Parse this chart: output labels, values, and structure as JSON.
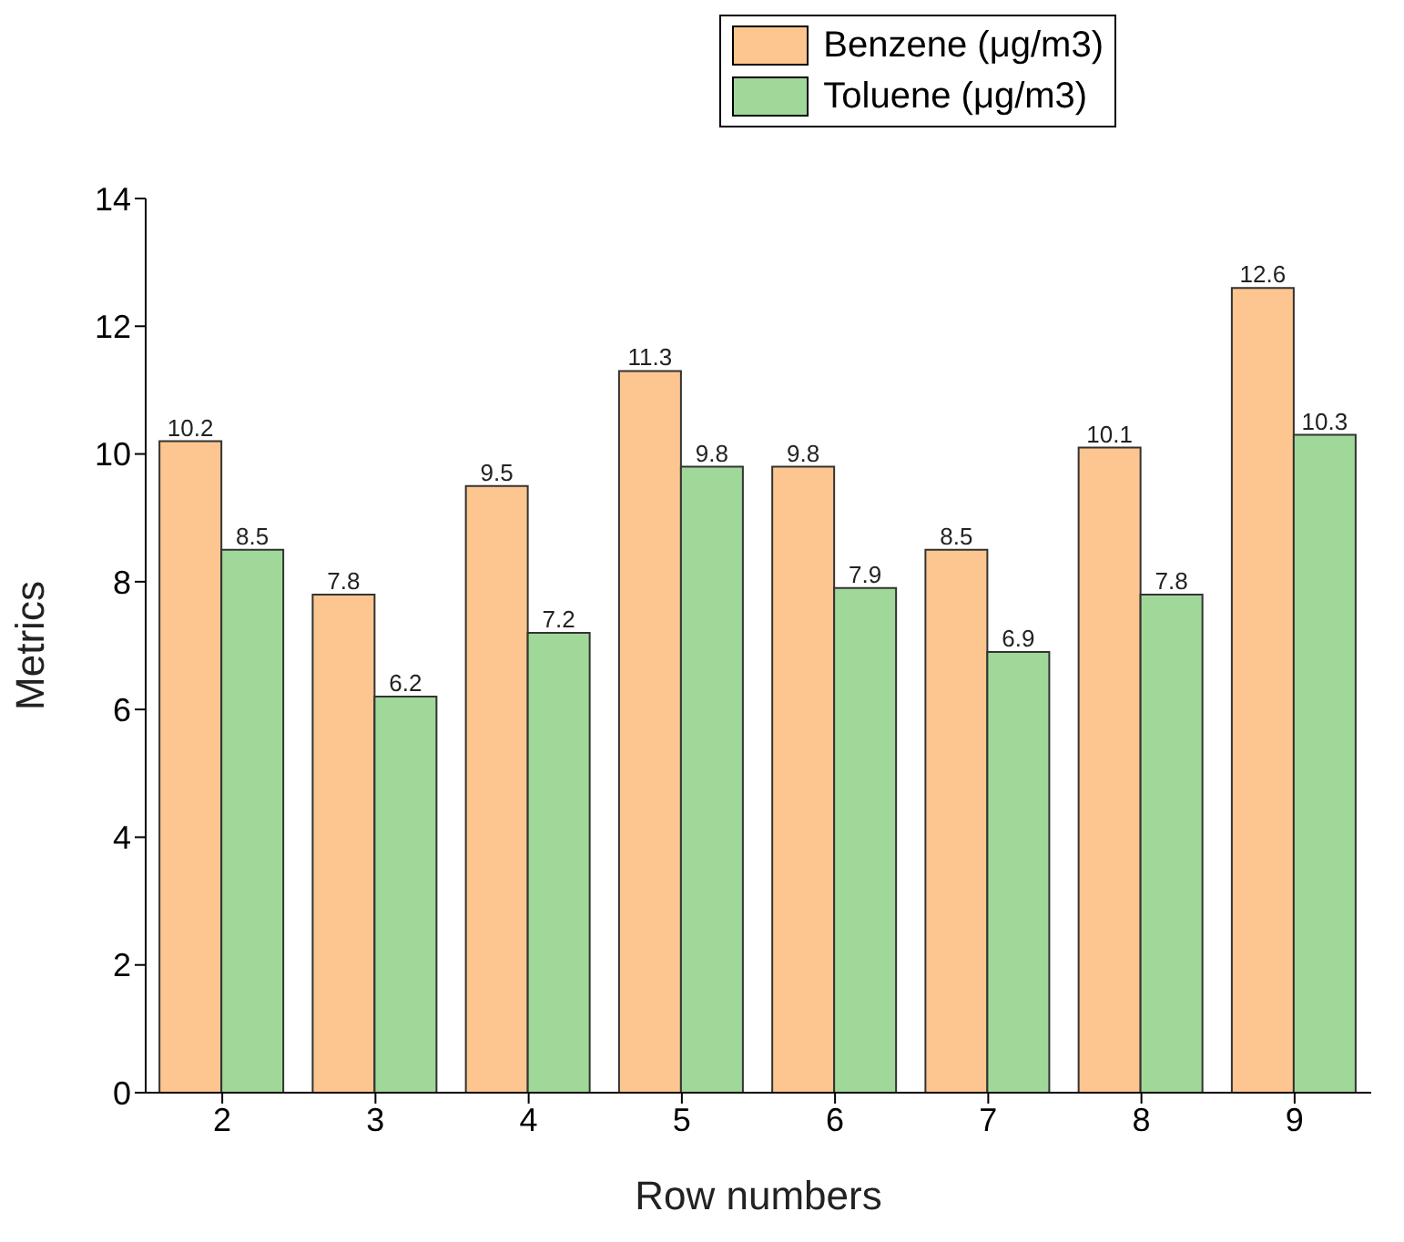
{
  "chart_data": {
    "type": "bar",
    "xlabel": "Row numbers",
    "ylabel": "Metrics",
    "categories": [
      "2",
      "3",
      "4",
      "5",
      "6",
      "7",
      "8",
      "9"
    ],
    "series": [
      {
        "name": "Benzene (μg/m3)",
        "color": "#fdc58f",
        "values": [
          10.2,
          7.8,
          9.5,
          11.3,
          9.8,
          8.5,
          10.1,
          12.6
        ]
      },
      {
        "name": "Toluene (μg/m3)",
        "color": "#a0d89a",
        "values": [
          8.5,
          6.2,
          7.2,
          9.8,
          7.9,
          6.9,
          7.8,
          10.3
        ]
      }
    ],
    "ylim": [
      0,
      14
    ],
    "yticks": [
      0,
      2,
      4,
      6,
      8,
      10,
      12,
      14
    ],
    "grid": false,
    "legend": "top right",
    "data_labels": true
  }
}
